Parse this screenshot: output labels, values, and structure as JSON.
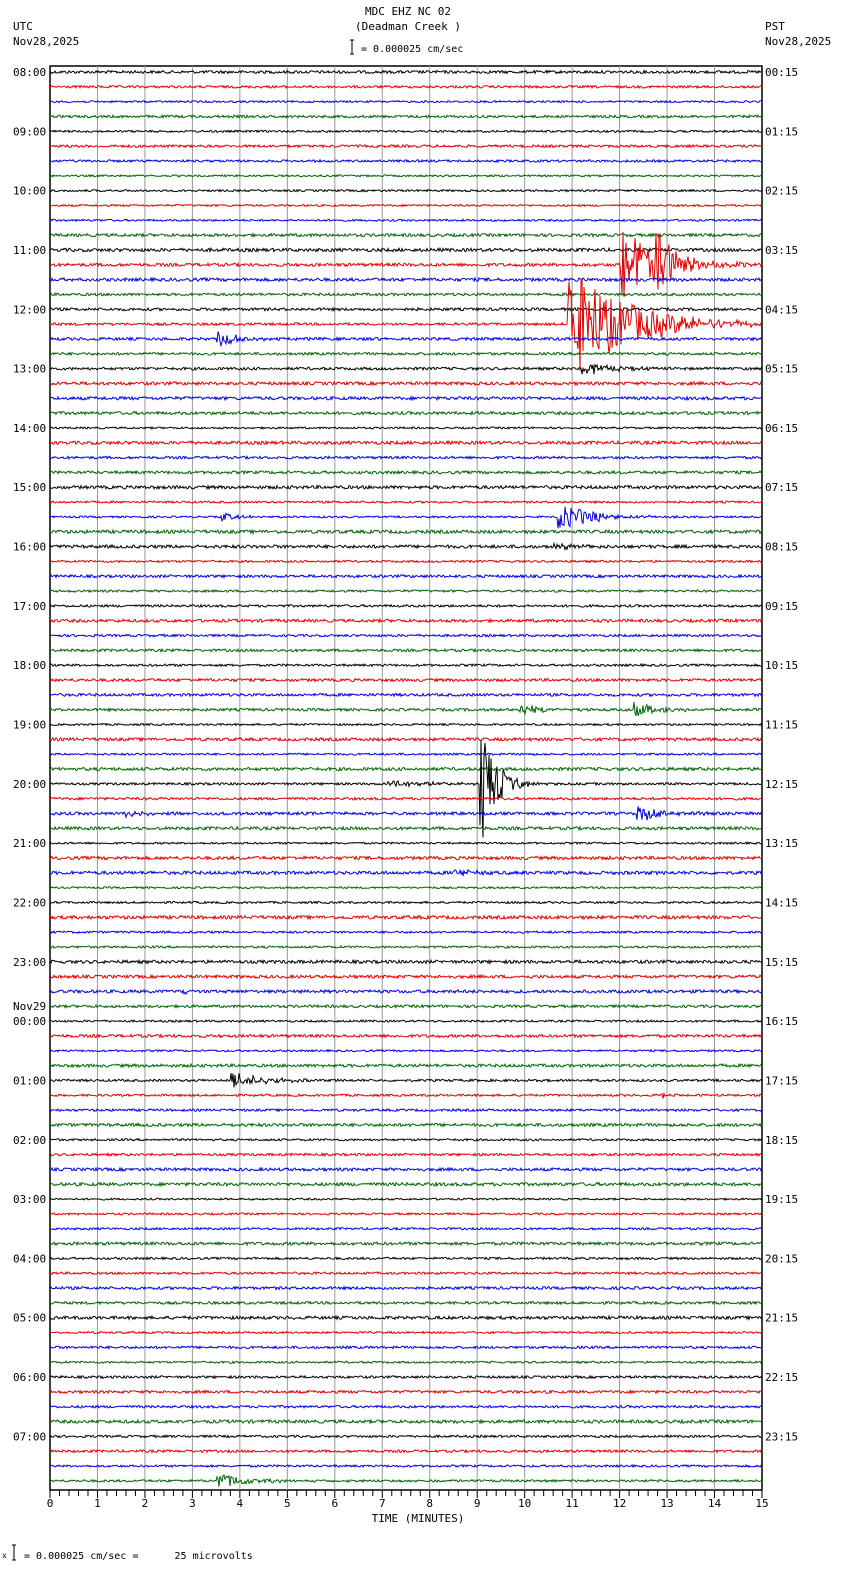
{
  "header": {
    "title": "MDC EHZ NC 02",
    "subtitle": "(Deadman Creek )",
    "scale": "= 0.000025 cm/sec",
    "left_tz": "UTC",
    "left_date": "Nov28,2025",
    "right_tz": "PST",
    "right_date": "Nov28,2025"
  },
  "footer": {
    "scale_note": "= 0.000025 cm/sec =      25 microvolts"
  },
  "chart_data": {
    "type": "line",
    "title": "MDC EHZ NC 02 (Deadman Creek )",
    "xlabel": "TIME (MINUTES)",
    "xlim": [
      0,
      15
    ],
    "x_ticks": [
      "0",
      "1",
      "2",
      "3",
      "4",
      "5",
      "6",
      "7",
      "8",
      "9",
      "10",
      "11",
      "12",
      "13",
      "14",
      "15"
    ],
    "traces_per_hour": 4,
    "trace_colors": [
      "#000000",
      "#e00000",
      "#0000e0",
      "#006400"
    ],
    "date_change_label": "Nov29",
    "left_labels": [
      "08:00",
      "09:00",
      "10:00",
      "11:00",
      "12:00",
      "13:00",
      "14:00",
      "15:00",
      "16:00",
      "17:00",
      "18:00",
      "19:00",
      "20:00",
      "21:00",
      "22:00",
      "23:00",
      "00:00",
      "01:00",
      "02:00",
      "03:00",
      "04:00",
      "05:00",
      "06:00",
      "07:00"
    ],
    "right_labels": [
      "00:15",
      "01:15",
      "02:15",
      "03:15",
      "04:15",
      "05:15",
      "06:15",
      "07:15",
      "08:15",
      "09:15",
      "10:15",
      "11:15",
      "12:15",
      "13:15",
      "14:15",
      "15:15",
      "16:15",
      "17:15",
      "18:15",
      "19:15",
      "20:15",
      "21:15",
      "22:15",
      "23:15"
    ],
    "events": [
      {
        "trace": 17,
        "minute": 10.9,
        "amp": 60,
        "decay": 1.2
      },
      {
        "trace": 13,
        "minute": 12.0,
        "amp": 40,
        "decay": 0.8
      },
      {
        "trace": 13,
        "minute": 12.7,
        "amp": 50,
        "decay": 0.3
      },
      {
        "trace": 18,
        "minute": 3.5,
        "amp": 8,
        "decay": 0.5
      },
      {
        "trace": 20,
        "minute": 11.2,
        "amp": 8,
        "decay": 0.6
      },
      {
        "trace": 30,
        "minute": 10.7,
        "amp": 14,
        "decay": 0.7
      },
      {
        "trace": 30,
        "minute": 3.6,
        "amp": 4,
        "decay": 0.4
      },
      {
        "trace": 32,
        "minute": 10.6,
        "amp": 4,
        "decay": 0.4
      },
      {
        "trace": 43,
        "minute": 9.9,
        "amp": 6,
        "decay": 0.4
      },
      {
        "trace": 43,
        "minute": 12.3,
        "amp": 7,
        "decay": 0.5
      },
      {
        "trace": 48,
        "minute": 9.05,
        "amp": 70,
        "decay": 0.3
      },
      {
        "trace": 48,
        "minute": 7.1,
        "amp": 4,
        "decay": 0.8
      },
      {
        "trace": 50,
        "minute": 12.35,
        "amp": 9,
        "decay": 0.5
      },
      {
        "trace": 50,
        "minute": 1.6,
        "amp": 4,
        "decay": 0.4
      },
      {
        "trace": 54,
        "minute": 8.5,
        "amp": 5,
        "decay": 0.4
      },
      {
        "trace": 62,
        "minute": 2.8,
        "amp": 5,
        "decay": 0.1
      },
      {
        "trace": 68,
        "minute": 3.8,
        "amp": 8,
        "decay": 0.7
      },
      {
        "trace": 69,
        "minute": 12.85,
        "amp": 6,
        "decay": 0.1
      },
      {
        "trace": 95,
        "minute": 3.5,
        "amp": 9,
        "decay": 0.6
      }
    ]
  }
}
